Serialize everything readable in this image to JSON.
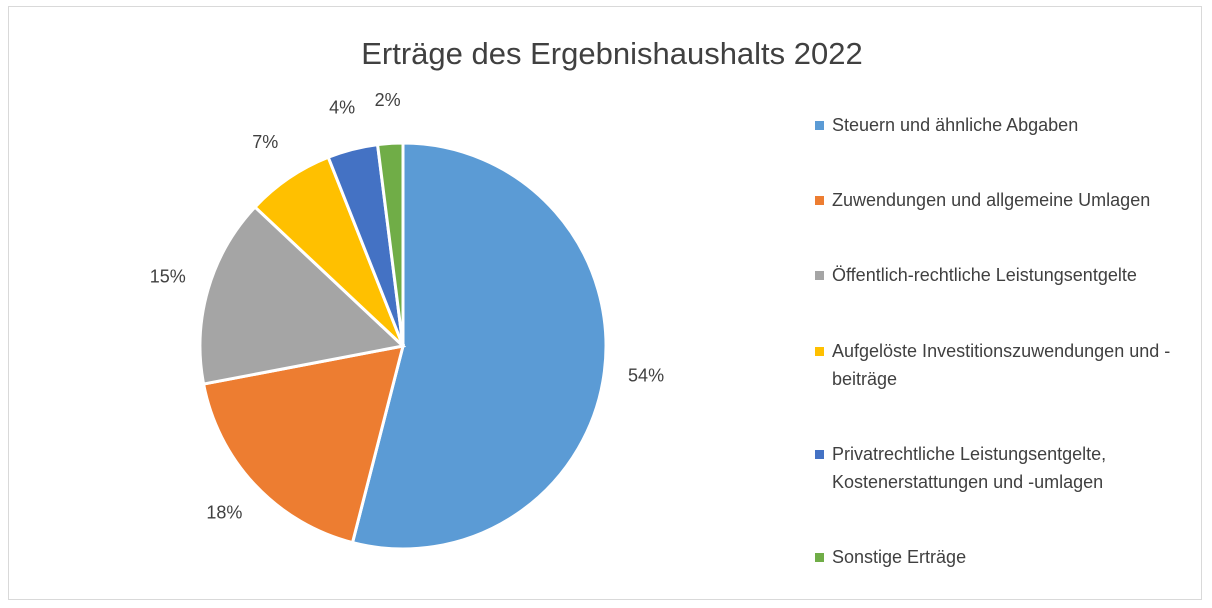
{
  "chart_data": {
    "type": "pie",
    "title": "Erträge des Ergebnishaushalts 2022",
    "categories": [
      "Steuern und ähnliche Abgaben",
      "Zuwendungen und allgemeine Umlagen",
      "Öffentlich-rechtliche Leistungsentgelte",
      "Aufgelöste Investitionszuwendungen und -beiträge",
      "Privatrechtliche Leistungsentgelte, Kostenerstattungen und -umlagen",
      "Sonstige Erträge"
    ],
    "values": [
      54,
      18,
      15,
      7,
      4,
      2
    ],
    "value_labels": [
      "54%",
      "18%",
      "15%",
      "7%",
      "4%",
      "2%"
    ],
    "colors": [
      "#5b9bd5",
      "#ed7d31",
      "#a5a5a5",
      "#ffc000",
      "#4472c4",
      "#70ad47"
    ],
    "legend": "right"
  }
}
